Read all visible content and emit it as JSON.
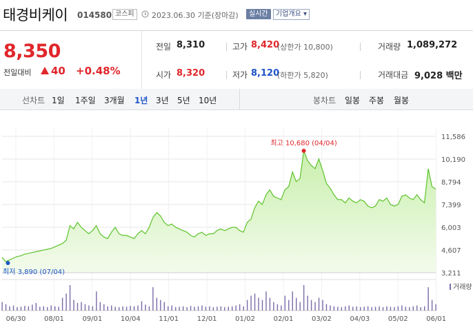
{
  "header": {
    "name": "태경비케이",
    "code": "014580",
    "market": "코스피",
    "asof": "2023.06.30 기준(장마감)",
    "realtime_btn": "실시간",
    "company_btn": "기업개요 ▾"
  },
  "quote": {
    "price": "8,350",
    "change_label": "전일대비",
    "change": "40",
    "change_rate": "+0.48%",
    "prev_label": "전일",
    "prev": "8,310",
    "high_label": "고가",
    "high": "8,420",
    "upper_limit": "(상한가 10,800)",
    "volume_label": "거래량",
    "volume": "1,089,272",
    "open_label": "시가",
    "open": "8,320",
    "low_label": "저가",
    "low": "8,120",
    "lower_limit": "(하한가 5,820)",
    "amount_label": "거래대금",
    "amount": "9,028 백만"
  },
  "periods": {
    "line_label": "선차트",
    "line_items": [
      "1일",
      "1주일",
      "3개월",
      "1년",
      "3년",
      "5년",
      "10년"
    ],
    "active": "1년",
    "candle_label": "봉차트",
    "candle_items": [
      "일봉",
      "주봉",
      "월봉"
    ]
  },
  "colors": {
    "up": "#e0262b",
    "down": "#1f55c7",
    "line": "#5cc22a",
    "fill": "#dff5cd"
  },
  "chart_data": {
    "type": "area",
    "title": "",
    "x_ticks": [
      "06/30",
      "08/01",
      "09/01",
      "10/04",
      "11/01",
      "12/01",
      "01/02",
      "02/01",
      "03/02",
      "04/03",
      "05/02",
      "06/01"
    ],
    "y_ticks": [
      11586,
      10190,
      8794,
      7399,
      6003,
      4607,
      3211
    ],
    "ylim": [
      3211,
      11586
    ],
    "high_annotation": "최고 10,680 (04/04)",
    "low_annotation": "최저 3,890 (07/04)",
    "volume_label": "거래량",
    "series": [
      {
        "values": [
          4150,
          3890,
          4000,
          4100,
          4200,
          4250,
          4350,
          4400,
          4450,
          4500,
          4550,
          4600,
          4650,
          4700,
          4800,
          4900,
          5000,
          5200,
          6100,
          5900,
          6300,
          6000,
          5800,
          5600,
          5800,
          6100,
          5600,
          5400,
          5300,
          5700,
          6000,
          5600,
          5500,
          5500,
          5400,
          5300,
          5600,
          5800,
          5600,
          6000,
          6600,
          6900,
          6700,
          6300,
          6100,
          6200,
          6000,
          5900,
          5800,
          5700,
          5500,
          5400,
          5600,
          5700,
          5500,
          5600,
          5600,
          5800,
          5900,
          5800,
          5900,
          6000,
          6000,
          5800,
          5700,
          6300,
          6500,
          7200,
          7600,
          7400,
          8000,
          8300,
          7900,
          7800,
          7700,
          8300,
          8500,
          9400,
          8800,
          9000,
          10700,
          10100,
          9800,
          9600,
          10200,
          9500,
          8700,
          8400,
          8000,
          7700,
          7700,
          7500,
          7800,
          7600,
          7500,
          7700,
          7600,
          7300,
          7200,
          7300,
          7700,
          7600,
          7800,
          7400,
          7300,
          7400,
          7900,
          8000,
          7800,
          7700,
          8000,
          7700,
          7500,
          9600,
          8500,
          8350
        ],
        "volumes": [
          20,
          15,
          10,
          12,
          8,
          9,
          11,
          10,
          14,
          18,
          9,
          10,
          8,
          12,
          10,
          9,
          30,
          40,
          60,
          25,
          18,
          20,
          15,
          12,
          10,
          45,
          20,
          15,
          10,
          12,
          9,
          8,
          10,
          9,
          11,
          10,
          12,
          22,
          14,
          10,
          55,
          30,
          25,
          20,
          10,
          12,
          8,
          9,
          10,
          8,
          11,
          9,
          10,
          12,
          9,
          10,
          8,
          9,
          10,
          8,
          9,
          10,
          12,
          15,
          10,
          25,
          35,
          40,
          30,
          25,
          45,
          30,
          20,
          15,
          12,
          35,
          25,
          45,
          30,
          20,
          60,
          35,
          25,
          20,
          30,
          25,
          15,
          12,
          10,
          9,
          8,
          10,
          12,
          9,
          10,
          8,
          9,
          10,
          8,
          9,
          10,
          8,
          10,
          9,
          8,
          10,
          12,
          9,
          8,
          10,
          12,
          8,
          10,
          55,
          25,
          15
        ]
      }
    ]
  }
}
